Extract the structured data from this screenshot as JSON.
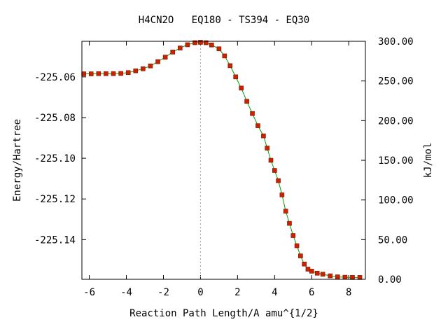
{
  "chart_data": {
    "type": "line",
    "title": "H4CN2O   EQ180 - TS394 - EQ30",
    "xlabel": "Reaction Path Length/A amu^{1/2}",
    "ylabel": "Energy/Hartree",
    "y2label": "kJ/mol",
    "xlim": [
      -6.4,
      8.9
    ],
    "ylim": [
      -225.1595,
      -225.0425
    ],
    "y2lim": [
      0.0,
      300.0
    ],
    "x_ticks": [
      -6,
      -4,
      -2,
      0,
      2,
      4,
      6,
      8
    ],
    "y_ticks": [
      -225.06,
      -225.08,
      -225.1,
      -225.12,
      -225.14
    ],
    "y2_ticks": [
      "300.00",
      "250.00",
      "200.00",
      "150.00",
      "100.00",
      "50.00",
      "0.00"
    ],
    "ts_marker_x": 0,
    "colors": {
      "line": "#00a000",
      "points": "#cc2200",
      "ts_line": "#a0a0a0"
    },
    "series": [
      {
        "x": [
          -6.3,
          -5.9,
          -5.5,
          -5.1,
          -4.7,
          -4.3,
          -3.9,
          -3.5,
          -3.1,
          -2.7,
          -2.3,
          -1.9,
          -1.5,
          -1.1,
          -0.7,
          -0.3,
          0.0,
          0.3,
          0.6,
          1.0,
          1.3,
          1.6,
          1.9,
          2.2,
          2.5,
          2.8,
          3.1,
          3.4,
          3.6,
          3.8,
          4.0,
          4.2,
          4.4,
          4.6,
          4.8,
          5.0,
          5.2,
          5.4,
          5.6,
          5.8,
          6.0,
          6.3,
          6.6,
          7.0,
          7.4,
          7.8,
          8.2,
          8.6
        ],
        "y": [
          -225.0585,
          -225.0585,
          -225.0584,
          -225.0584,
          -225.0584,
          -225.0583,
          -225.0579,
          -225.057,
          -225.056,
          -225.0546,
          -225.0525,
          -225.0503,
          -225.0478,
          -225.0458,
          -225.0442,
          -225.0432,
          -225.043,
          -225.0432,
          -225.0443,
          -225.0462,
          -225.0497,
          -225.0545,
          -225.06,
          -225.0655,
          -225.072,
          -225.078,
          -225.084,
          -225.089,
          -225.095,
          -225.101,
          -225.106,
          -225.111,
          -225.118,
          -225.126,
          -225.132,
          -225.138,
          -225.143,
          -225.148,
          -225.152,
          -225.1545,
          -225.1555,
          -225.1565,
          -225.157,
          -225.1578,
          -225.1583,
          -225.1585,
          -225.1586,
          -225.1586
        ]
      }
    ]
  }
}
